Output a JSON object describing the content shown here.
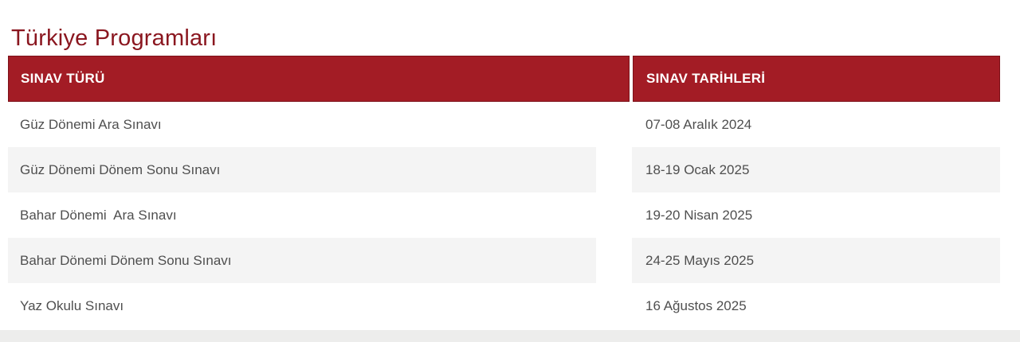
{
  "page": {
    "title": "Türkiye Programları"
  },
  "table": {
    "columns": [
      {
        "label": "SINAV TÜRÜ"
      },
      {
        "label": "SINAV TARİHLERİ"
      }
    ],
    "rows": [
      {
        "type": "Güz Dönemi Ara Sınavı",
        "date": "07-08 Aralık 2024"
      },
      {
        "type": "Güz Dönemi Dönem Sonu Sınavı",
        "date": "18-19 Ocak 2025"
      },
      {
        "type": "Bahar Dönemi  Ara Sınavı",
        "date": "19-20 Nisan 2025"
      },
      {
        "type": "Bahar Dönemi Dönem Sonu Sınavı",
        "date": "24-25 Mayıs 2025"
      },
      {
        "type": "Yaz Okulu Sınavı",
        "date": "16 Ağustos 2025"
      }
    ]
  },
  "colors": {
    "title_text": "#8a161f",
    "header_bg": "#a31c25",
    "header_border": "#7d1119",
    "header_text": "#ffffff",
    "row_stripe": "#f4f4f4",
    "body_text": "#4f4f4f",
    "scrollbar_track": "#ededec"
  }
}
